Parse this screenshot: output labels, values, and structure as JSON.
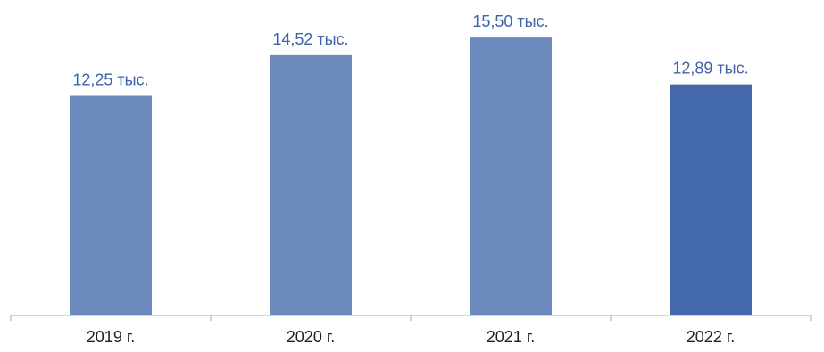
{
  "chart_data": {
    "type": "bar",
    "categories": [
      "2019 г.",
      "2020 г.",
      "2021 г.",
      "2022 г."
    ],
    "values": [
      12.25,
      14.52,
      15.5,
      12.89
    ],
    "data_labels": [
      "12,25 тыс.",
      "14,52 тыс.",
      "15,50 тыс.",
      "12,89 тыс."
    ],
    "title": "",
    "xlabel": "",
    "ylabel": "",
    "ylim": [
      0,
      16.6
    ],
    "grid": false,
    "legend": "none",
    "colors": {
      "bar": "#6d8abf",
      "highlight_bar": "#4469aa",
      "axis": "#b8c6dc",
      "label": "#3f63a6",
      "tick_label": "#222222"
    },
    "highlight_index": 3
  }
}
